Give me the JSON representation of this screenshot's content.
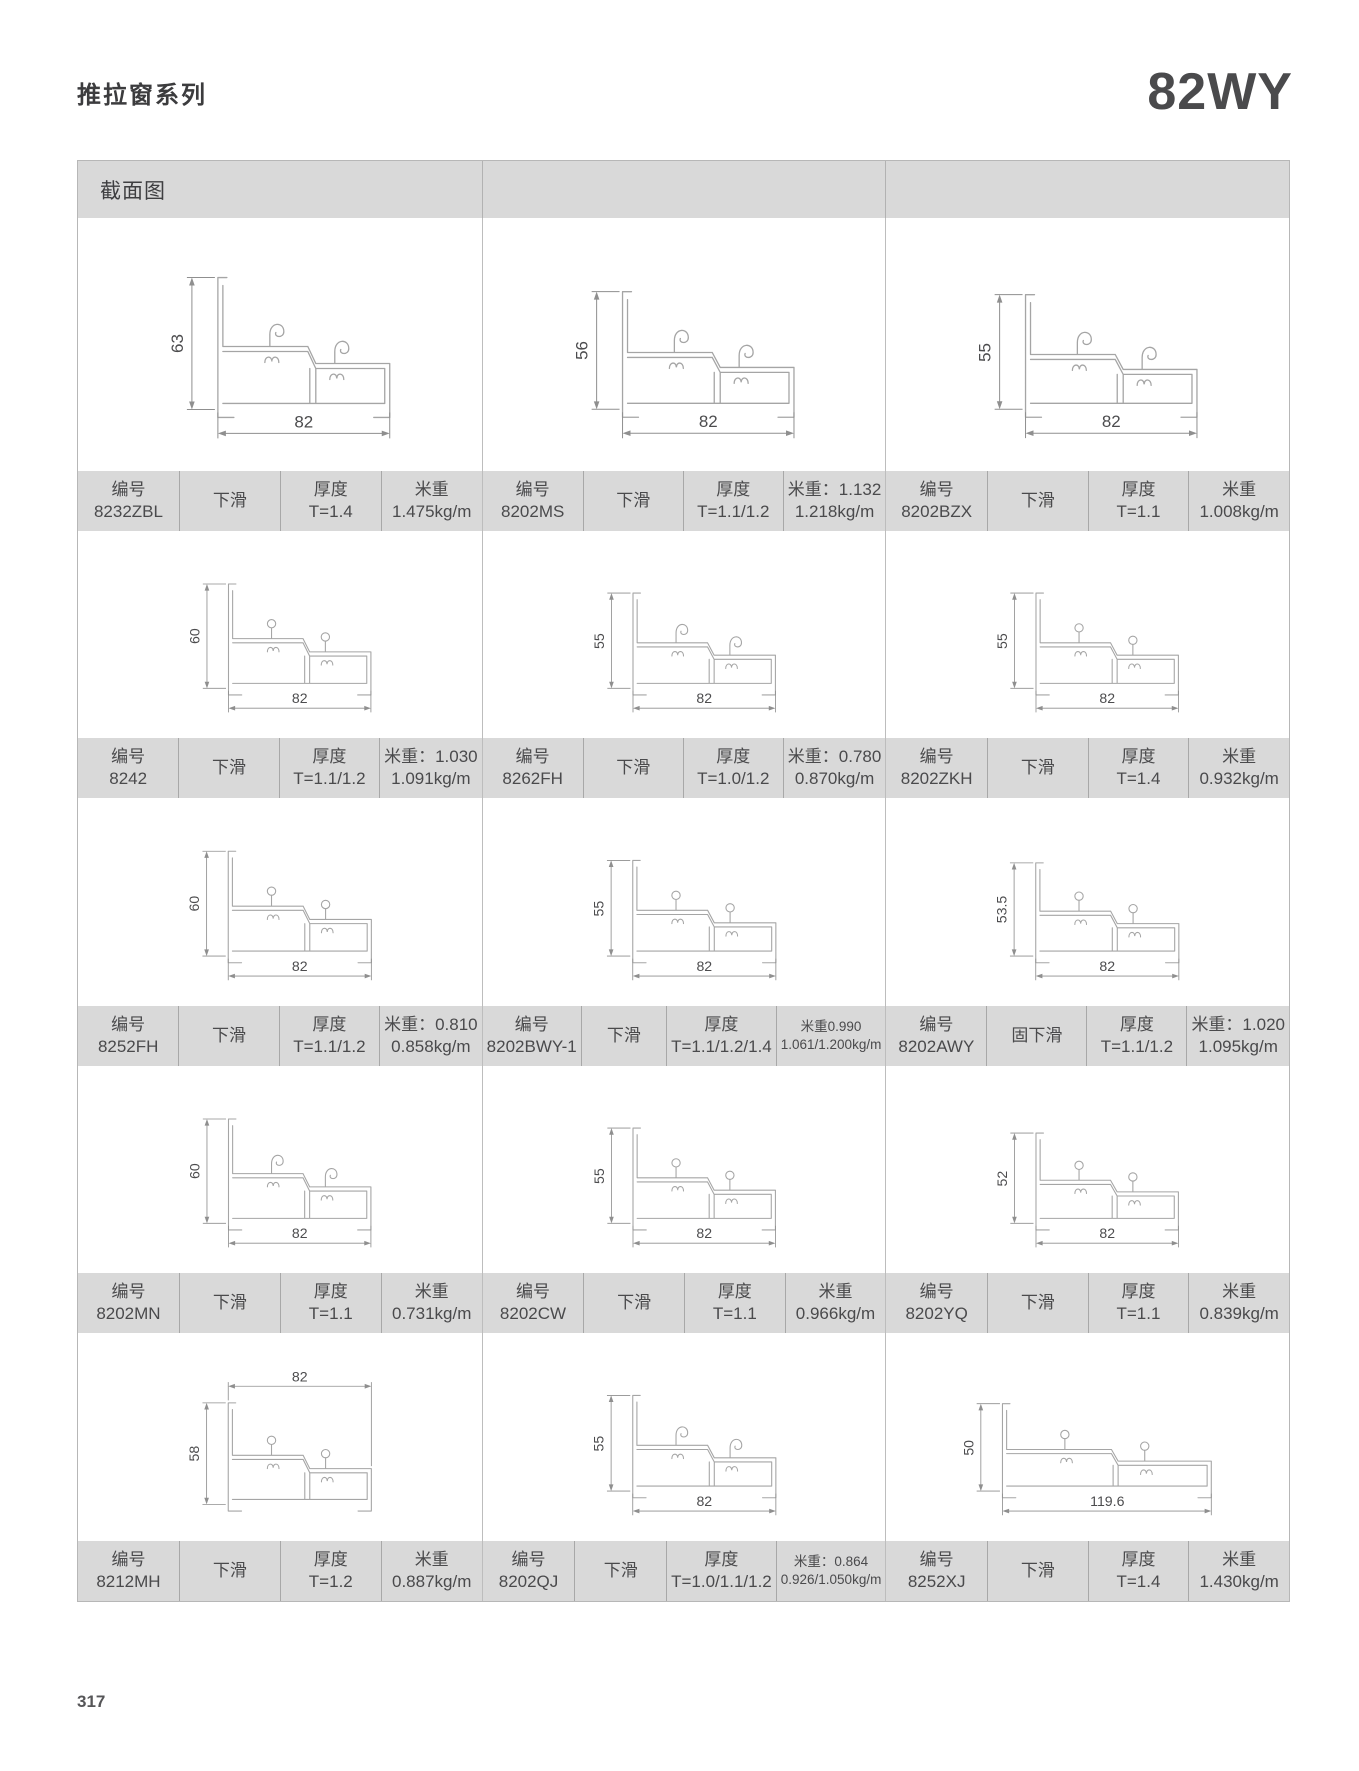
{
  "page": {
    "series_title": "推拉窗系列",
    "model": "82WY",
    "section_header": "截面图",
    "page_number": "317"
  },
  "labels": {
    "code": "编号",
    "thickness": "厚度",
    "weight": "米重"
  },
  "profiles": [
    {
      "code": "8232ZBL",
      "type": "下滑",
      "thickness": "T=1.4",
      "weight_line1": "米重",
      "weight_line2": "1.475kg/m",
      "weight_small": false,
      "height": "63",
      "width": "82",
      "width_dim_pos": "bottom",
      "pin_style": "hook"
    },
    {
      "code": "8202MS",
      "type": "下滑",
      "thickness": "T=1.1/1.2",
      "weight_line1": "米重：1.132",
      "weight_line2": "1.218kg/m",
      "weight_small": false,
      "height": "56",
      "width": "82",
      "width_dim_pos": "bottom",
      "pin_style": "hook"
    },
    {
      "code": "8202BZX",
      "type": "下滑",
      "thickness": "T=1.1",
      "weight_line1": "米重",
      "weight_line2": "1.008kg/m",
      "weight_small": false,
      "height": "55",
      "width": "82",
      "width_dim_pos": "bottom",
      "pin_style": "hook"
    },
    {
      "code": "8242",
      "type": "下滑",
      "thickness": "T=1.1/1.2",
      "weight_line1": "米重：1.030",
      "weight_line2": "1.091kg/m",
      "weight_small": false,
      "height": "60",
      "width": "82",
      "width_dim_pos": "bottom",
      "pin_style": "ball"
    },
    {
      "code": "8262FH",
      "type": "下滑",
      "thickness": "T=1.0/1.2",
      "weight_line1": "米重：0.780",
      "weight_line2": "0.870kg/m",
      "weight_small": false,
      "height": "55",
      "width": "82",
      "width_dim_pos": "bottom",
      "pin_style": "hook"
    },
    {
      "code": "8202ZKH",
      "type": "下滑",
      "thickness": "T=1.4",
      "weight_line1": "米重",
      "weight_line2": "0.932kg/m",
      "weight_small": false,
      "height": "55",
      "width": "82",
      "width_dim_pos": "bottom",
      "pin_style": "ball"
    },
    {
      "code": "8252FH",
      "type": "下滑",
      "thickness": "T=1.1/1.2",
      "weight_line1": "米重：0.810",
      "weight_line2": "0.858kg/m",
      "weight_small": false,
      "height": "60",
      "width": "82",
      "width_dim_pos": "bottom",
      "pin_style": "ball"
    },
    {
      "code": "8202BWY-1",
      "type": "下滑",
      "thickness": "T=1.1/1.2/1.4",
      "weight_line1": "米重0.990",
      "weight_line2": "1.061/1.200kg/m",
      "weight_small": true,
      "height": "55",
      "width": "82",
      "width_dim_pos": "bottom",
      "pin_style": "ball"
    },
    {
      "code": "8202AWY",
      "type": "固下滑",
      "thickness": "T=1.1/1.2",
      "weight_line1": "米重：1.020",
      "weight_line2": "1.095kg/m",
      "weight_small": false,
      "height": "53.5",
      "width": "82",
      "width_dim_pos": "bottom",
      "pin_style": "ball"
    },
    {
      "code": "8202MN",
      "type": "下滑",
      "thickness": "T=1.1",
      "weight_line1": "米重",
      "weight_line2": "0.731kg/m",
      "weight_small": false,
      "height": "60",
      "width": "82",
      "width_dim_pos": "bottom",
      "pin_style": "hook"
    },
    {
      "code": "8202CW",
      "type": "下滑",
      "thickness": "T=1.1",
      "weight_line1": "米重",
      "weight_line2": "0.966kg/m",
      "weight_small": false,
      "height": "55",
      "width": "82",
      "width_dim_pos": "bottom",
      "pin_style": "ball"
    },
    {
      "code": "8202YQ",
      "type": "下滑",
      "thickness": "T=1.1",
      "weight_line1": "米重",
      "weight_line2": "0.839kg/m",
      "weight_small": false,
      "height": "52",
      "width": "82",
      "width_dim_pos": "bottom",
      "pin_style": "ball"
    },
    {
      "code": "8212MH",
      "type": "下滑",
      "thickness": "T=1.2",
      "weight_line1": "米重",
      "weight_line2": "0.887kg/m",
      "weight_small": false,
      "height": "58",
      "width": "82",
      "width_dim_pos": "top",
      "pin_style": "ball"
    },
    {
      "code": "8202QJ",
      "type": "下滑",
      "thickness": "T=1.0/1.1/1.2",
      "weight_line1": "米重：0.864",
      "weight_line2": "0.926/1.050kg/m",
      "weight_small": true,
      "height": "55",
      "width": "82",
      "width_dim_pos": "bottom",
      "pin_style": "hook"
    },
    {
      "code": "8252XJ",
      "type": "下滑",
      "thickness": "T=1.4",
      "weight_line1": "米重",
      "weight_line2": "1.430kg/m",
      "weight_small": false,
      "height": "50",
      "width": "119.6",
      "width_dim_pos": "bottom",
      "pin_style": "ball"
    }
  ]
}
